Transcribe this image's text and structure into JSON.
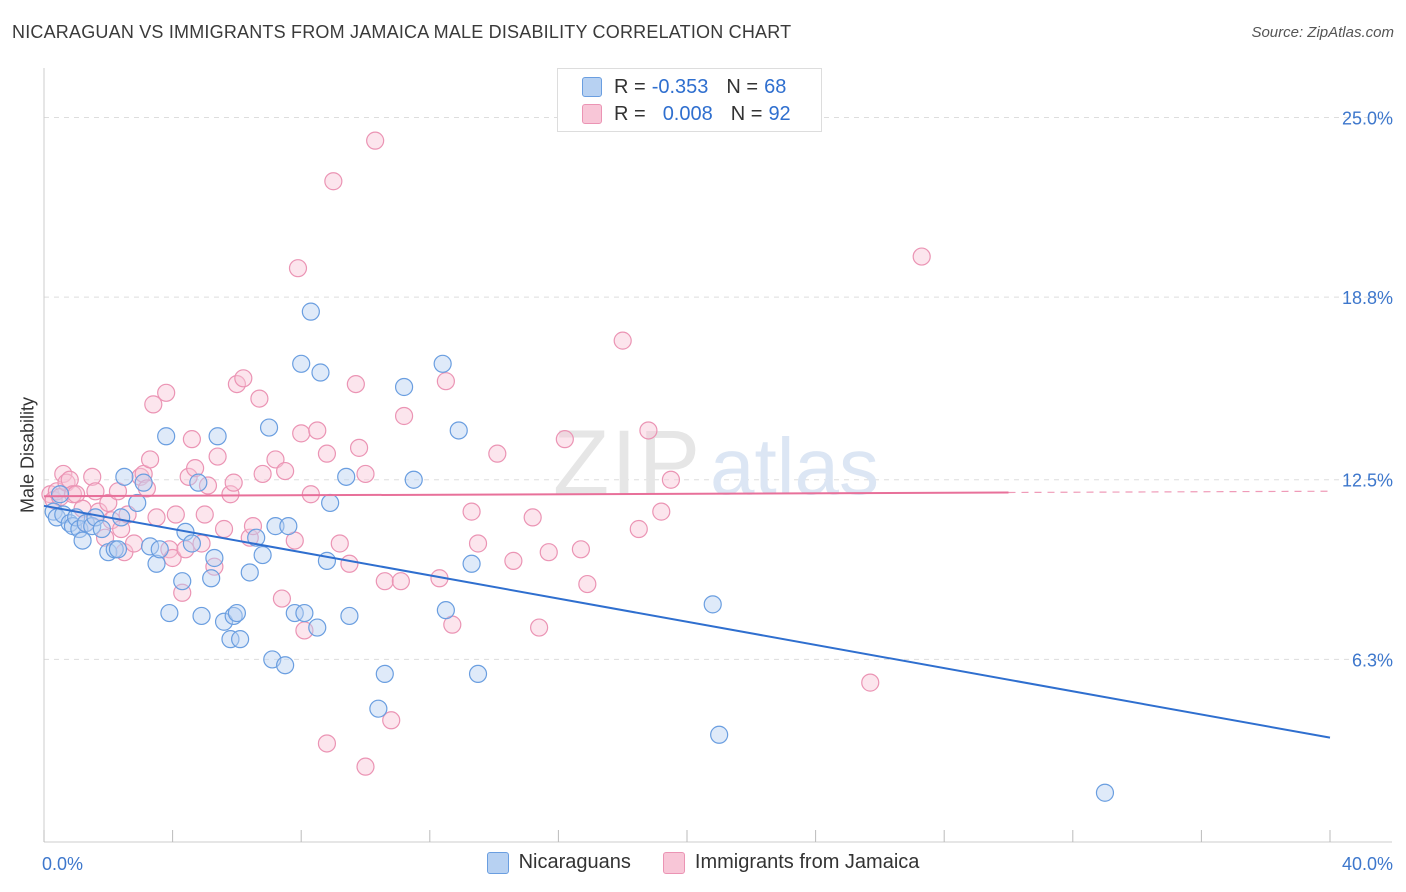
{
  "title": "NICARAGUAN VS IMMIGRANTS FROM JAMAICA MALE DISABILITY CORRELATION CHART",
  "source": "Source: ZipAtlas.com",
  "watermark": {
    "part1": "ZIP",
    "part2": "atlas"
  },
  "legend": {
    "series1": {
      "r_label": "R =",
      "r_value": "-0.353",
      "n_label": "N =",
      "n_value": "68"
    },
    "series2": {
      "r_label": "R =",
      "r_value": "0.008",
      "n_label": "N =",
      "n_value": "92"
    }
  },
  "bottom_legend": {
    "series1": "Nicaraguans",
    "series2": "Immigrants from Jamaica"
  },
  "chart_data": {
    "type": "scatter",
    "title": "NICARAGUAN VS IMMIGRANTS FROM JAMAICA MALE DISABILITY CORRELATION CHART",
    "xlabel": "",
    "ylabel": "Male Disability",
    "xlim": [
      0,
      40
    ],
    "ylim": [
      0,
      26.5
    ],
    "x_tick_labels": [
      {
        "value": 0,
        "label": "0.0%"
      },
      {
        "value": 40,
        "label": "40.0%"
      }
    ],
    "y_tick_labels": [
      {
        "value": 6.3,
        "label": "6.3%"
      },
      {
        "value": 12.5,
        "label": "12.5%"
      },
      {
        "value": 18.8,
        "label": "18.8%"
      },
      {
        "value": 25.0,
        "label": "25.0%"
      }
    ],
    "grid": true,
    "legend_position": "top-center",
    "series": [
      {
        "name": "Nicaraguans",
        "color": "#6a9ee0",
        "fill": "#b7d1f2",
        "trend": {
          "x": [
            0,
            40
          ],
          "y": [
            11.6,
            3.6
          ],
          "color": "#2f6fcf"
        },
        "points": [
          [
            0.3,
            11.4
          ],
          [
            0.4,
            11.2
          ],
          [
            0.5,
            12.0
          ],
          [
            0.6,
            11.3
          ],
          [
            0.8,
            11.0
          ],
          [
            0.9,
            10.9
          ],
          [
            1.0,
            11.2
          ],
          [
            1.1,
            10.8
          ],
          [
            1.2,
            10.4
          ],
          [
            1.3,
            11.0
          ],
          [
            1.5,
            10.9
          ],
          [
            1.6,
            11.2
          ],
          [
            1.8,
            10.8
          ],
          [
            2.0,
            10.0
          ],
          [
            2.2,
            10.1
          ],
          [
            2.3,
            10.1
          ],
          [
            2.4,
            11.2
          ],
          [
            2.5,
            12.6
          ],
          [
            2.9,
            11.7
          ],
          [
            3.1,
            12.4
          ],
          [
            3.3,
            10.2
          ],
          [
            3.5,
            9.6
          ],
          [
            3.6,
            10.1
          ],
          [
            3.8,
            14.0
          ],
          [
            3.9,
            7.9
          ],
          [
            4.3,
            9.0
          ],
          [
            4.4,
            10.7
          ],
          [
            4.6,
            10.3
          ],
          [
            4.8,
            12.4
          ],
          [
            4.9,
            7.8
          ],
          [
            5.2,
            9.1
          ],
          [
            5.3,
            9.8
          ],
          [
            5.4,
            14.0
          ],
          [
            5.6,
            7.6
          ],
          [
            5.8,
            7.0
          ],
          [
            5.9,
            7.8
          ],
          [
            6.0,
            7.9
          ],
          [
            6.1,
            7.0
          ],
          [
            6.4,
            9.3
          ],
          [
            6.6,
            10.5
          ],
          [
            6.8,
            9.9
          ],
          [
            7.0,
            14.3
          ],
          [
            7.1,
            6.3
          ],
          [
            7.2,
            10.9
          ],
          [
            7.5,
            6.1
          ],
          [
            7.6,
            10.9
          ],
          [
            7.8,
            7.9
          ],
          [
            8.0,
            16.5
          ],
          [
            8.1,
            7.9
          ],
          [
            8.3,
            18.3
          ],
          [
            8.5,
            7.4
          ],
          [
            8.6,
            16.2
          ],
          [
            8.8,
            9.7
          ],
          [
            8.9,
            11.7
          ],
          [
            9.4,
            12.6
          ],
          [
            9.5,
            7.8
          ],
          [
            10.4,
            4.6
          ],
          [
            10.6,
            5.8
          ],
          [
            11.2,
            15.7
          ],
          [
            11.5,
            12.5
          ],
          [
            12.4,
            16.5
          ],
          [
            12.5,
            8.0
          ],
          [
            12.9,
            14.2
          ],
          [
            13.3,
            9.6
          ],
          [
            13.5,
            5.8
          ],
          [
            20.8,
            8.2
          ],
          [
            21.0,
            3.7
          ],
          [
            33.0,
            1.7
          ]
        ]
      },
      {
        "name": "Immigrants from Jamaica",
        "color": "#eb94b4",
        "fill": "#f8c6d7",
        "trend": {
          "x": [
            0,
            30
          ],
          "y": [
            11.93,
            12.06
          ],
          "color": "#e8709a",
          "dashed_to": 40
        },
        "points": [
          [
            0.2,
            12.0
          ],
          [
            0.3,
            11.8
          ],
          [
            0.4,
            12.1
          ],
          [
            0.5,
            11.9
          ],
          [
            0.6,
            12.7
          ],
          [
            0.7,
            12.4
          ],
          [
            0.8,
            12.5
          ],
          [
            0.9,
            12.0
          ],
          [
            1.0,
            12.0
          ],
          [
            1.2,
            11.5
          ],
          [
            1.3,
            11.0
          ],
          [
            1.5,
            12.6
          ],
          [
            1.6,
            12.1
          ],
          [
            1.7,
            11.4
          ],
          [
            1.9,
            10.5
          ],
          [
            2.0,
            11.7
          ],
          [
            2.1,
            11.1
          ],
          [
            2.3,
            12.1
          ],
          [
            2.4,
            10.8
          ],
          [
            2.5,
            10.0
          ],
          [
            2.6,
            11.3
          ],
          [
            2.8,
            10.3
          ],
          [
            3.0,
            12.6
          ],
          [
            3.1,
            12.7
          ],
          [
            3.2,
            12.2
          ],
          [
            3.3,
            13.2
          ],
          [
            3.4,
            15.1
          ],
          [
            3.5,
            11.2
          ],
          [
            3.8,
            15.5
          ],
          [
            3.9,
            10.1
          ],
          [
            4.0,
            9.8
          ],
          [
            4.1,
            11.3
          ],
          [
            4.3,
            8.6
          ],
          [
            4.4,
            10.1
          ],
          [
            4.5,
            12.6
          ],
          [
            4.6,
            13.9
          ],
          [
            4.7,
            12.9
          ],
          [
            4.9,
            10.3
          ],
          [
            5.0,
            11.3
          ],
          [
            5.1,
            12.3
          ],
          [
            5.3,
            9.5
          ],
          [
            5.4,
            13.3
          ],
          [
            5.6,
            10.8
          ],
          [
            5.8,
            12.0
          ],
          [
            5.9,
            12.4
          ],
          [
            6.0,
            15.8
          ],
          [
            6.2,
            16.0
          ],
          [
            6.4,
            10.5
          ],
          [
            6.5,
            10.9
          ],
          [
            6.7,
            15.3
          ],
          [
            6.8,
            12.7
          ],
          [
            7.2,
            13.2
          ],
          [
            7.4,
            8.4
          ],
          [
            7.5,
            12.8
          ],
          [
            7.8,
            10.4
          ],
          [
            7.9,
            19.8
          ],
          [
            8.0,
            14.1
          ],
          [
            8.1,
            7.3
          ],
          [
            8.3,
            12.0
          ],
          [
            8.5,
            14.2
          ],
          [
            8.8,
            13.4
          ],
          [
            9.0,
            22.8
          ],
          [
            9.2,
            10.3
          ],
          [
            9.5,
            9.6
          ],
          [
            9.7,
            15.8
          ],
          [
            9.8,
            13.6
          ],
          [
            10.0,
            12.7
          ],
          [
            10.3,
            24.2
          ],
          [
            10.6,
            9.0
          ],
          [
            10.8,
            4.2
          ],
          [
            11.1,
            9.0
          ],
          [
            11.2,
            14.7
          ],
          [
            12.3,
            9.1
          ],
          [
            12.5,
            15.9
          ],
          [
            12.7,
            7.5
          ],
          [
            13.3,
            11.4
          ],
          [
            13.5,
            10.3
          ],
          [
            14.1,
            13.4
          ],
          [
            14.6,
            9.7
          ],
          [
            15.2,
            11.2
          ],
          [
            15.4,
            7.4
          ],
          [
            15.7,
            10.0
          ],
          [
            16.2,
            13.9
          ],
          [
            16.7,
            10.1
          ],
          [
            16.9,
            8.9
          ],
          [
            18.0,
            17.3
          ],
          [
            18.5,
            10.8
          ],
          [
            18.8,
            14.2
          ],
          [
            19.2,
            11.4
          ],
          [
            19.5,
            12.5
          ],
          [
            25.7,
            5.5
          ],
          [
            27.3,
            20.2
          ]
        ],
        "extra_low_points": [
          [
            8.8,
            3.4
          ],
          [
            10.0,
            2.6
          ]
        ]
      }
    ]
  }
}
